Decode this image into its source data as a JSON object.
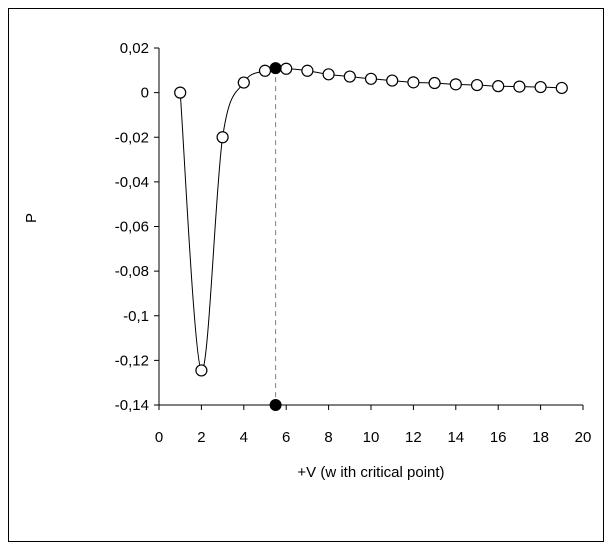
{
  "chart_data": {
    "type": "scatter",
    "title": "",
    "xlabel": "+V (w ith critical point)",
    "ylabel": "P",
    "xlim": [
      0,
      20
    ],
    "ylim": [
      -0.14,
      0.02
    ],
    "x_ticks": [
      0,
      2,
      4,
      6,
      8,
      10,
      12,
      14,
      16,
      18,
      20
    ],
    "x_tick_labels": [
      "0",
      "2",
      "4",
      "6",
      "8",
      "10",
      "12",
      "14",
      "16",
      "18",
      "20"
    ],
    "y_ticks": [
      0.02,
      0,
      -0.02,
      -0.04,
      -0.06,
      -0.08,
      -0.1,
      -0.12,
      -0.14
    ],
    "y_tick_labels": [
      "0,02",
      "0",
      "-0,02",
      "-0,04",
      "-0,06",
      "-0,08",
      "-0,1",
      "-0,12",
      "-0,14"
    ],
    "grid": false,
    "series": [
      {
        "marker": "open-circle",
        "line": "smooth",
        "x": [
          1,
          2,
          3,
          4,
          5,
          6,
          7,
          8,
          9,
          10,
          11,
          12,
          13,
          14,
          15,
          16,
          17,
          18,
          19
        ],
        "y": [
          0,
          -0.1245,
          -0.02,
          0.0045,
          0.0098,
          0.0107,
          0.0098,
          0.0082,
          0.0072,
          0.0062,
          0.0054,
          0.0046,
          0.0043,
          0.0037,
          0.0034,
          0.0029,
          0.0027,
          0.0025,
          0.0021
        ]
      }
    ],
    "critical_point": {
      "x": 5.5,
      "y": 0.011,
      "marker": "filled-circle"
    },
    "critical_axis_marker": {
      "x": 5.5,
      "y": -0.14,
      "marker": "filled-circle"
    },
    "critical_line_style": "dashed",
    "colors": {
      "line": "#000000",
      "marker_fill": "#ffffff",
      "critical_fill": "#000000",
      "dash": "#808080"
    }
  }
}
